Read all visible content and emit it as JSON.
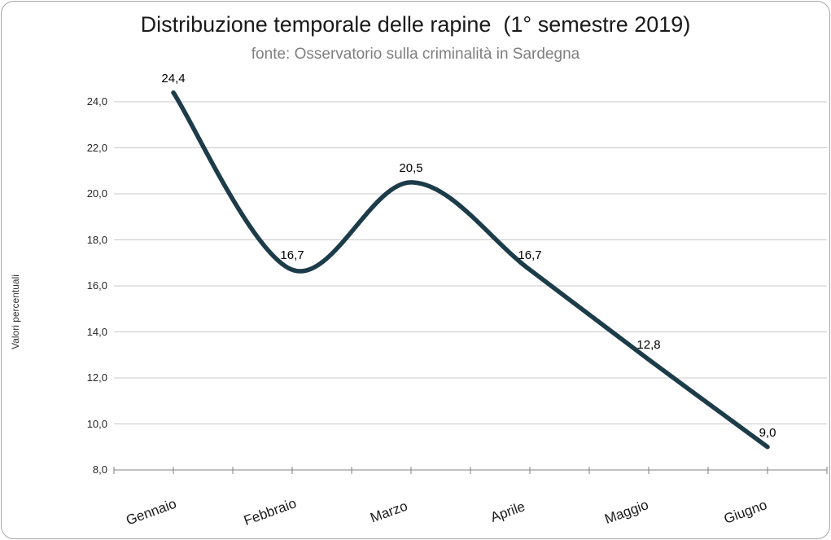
{
  "frame": {
    "border_color": "#a6a6a6",
    "background": "#ffffff"
  },
  "header": {
    "title": "Distribuzione temporale delle rapine  (1° semestre 2019)",
    "subtitle": "fonte: Osservatorio sulla criminalità in Sardegna",
    "title_color": "#1a1a1a",
    "subtitle_color": "#7f7f7f"
  },
  "chart_data": {
    "type": "line",
    "smooth": true,
    "title": "Distribuzione temporale delle rapine  (1° semestre 2019)",
    "subtitle": "fonte: Osservatorio sulla criminalità in Sardegna",
    "categories": [
      "Gennaio",
      "Febbraio",
      "Marzo",
      "Aprile",
      "Maggio",
      "Giugno"
    ],
    "series": [
      {
        "name": "rapine",
        "values": [
          24.4,
          16.7,
          20.5,
          16.7,
          12.8,
          9.0
        ],
        "point_labels": [
          "24,4",
          "16,7",
          "20,5",
          "16,7",
          "12,8",
          "9,0"
        ],
        "color": "#1d3c4a",
        "stroke_width": 5.5
      }
    ],
    "xlabel": "",
    "ylabel": "Valori percentuali",
    "ylim": [
      8,
      24
    ],
    "ytick_step": 2,
    "ytick_labels": [
      "8,0",
      "10,0",
      "12,0",
      "14,0",
      "16,0",
      "18,0",
      "20,0",
      "22,0",
      "24,0"
    ],
    "grid": true,
    "gridline_color": "#c9c9c9",
    "axis_color": "#808080",
    "tick_label_color": "#262626",
    "legend": "none"
  }
}
